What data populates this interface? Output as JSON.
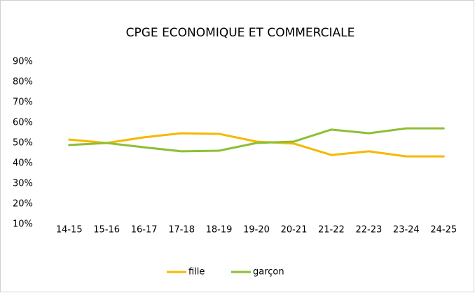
{
  "chart_data": {
    "type": "line",
    "title": "CPGE ECONOMIQUE ET COMMERCIALE",
    "categories": [
      "14-15",
      "15-16",
      "16-17",
      "17-18",
      "18-19",
      "19-20",
      "20-21",
      "21-22",
      "22-23",
      "23-24",
      "24-25"
    ],
    "series": [
      {
        "name": "fille",
        "color": "#f5b800",
        "values": [
          51.7,
          50,
          52.8,
          54.8,
          54.5,
          50.7,
          49.7,
          44.1,
          45.9,
          43.4,
          43.4
        ]
      },
      {
        "name": "garçon",
        "color": "#8dbf33",
        "values": [
          49,
          50,
          47.9,
          45.9,
          46.2,
          50,
          50.7,
          56.6,
          54.8,
          57.2,
          57.2
        ]
      }
    ],
    "ylim": [
      10,
      90
    ],
    "yticks": [
      {
        "value": 10,
        "label": "10%"
      },
      {
        "value": 20,
        "label": "20%"
      },
      {
        "value": 30,
        "label": "30%"
      },
      {
        "value": 40,
        "label": "40%"
      },
      {
        "value": 50,
        "label": "50%"
      },
      {
        "value": 60,
        "label": "60%"
      },
      {
        "value": 70,
        "label": "70%"
      },
      {
        "value": 80,
        "label": "80%"
      },
      {
        "value": 90,
        "label": "90%"
      }
    ],
    "grid": false,
    "legend": "bottom"
  }
}
